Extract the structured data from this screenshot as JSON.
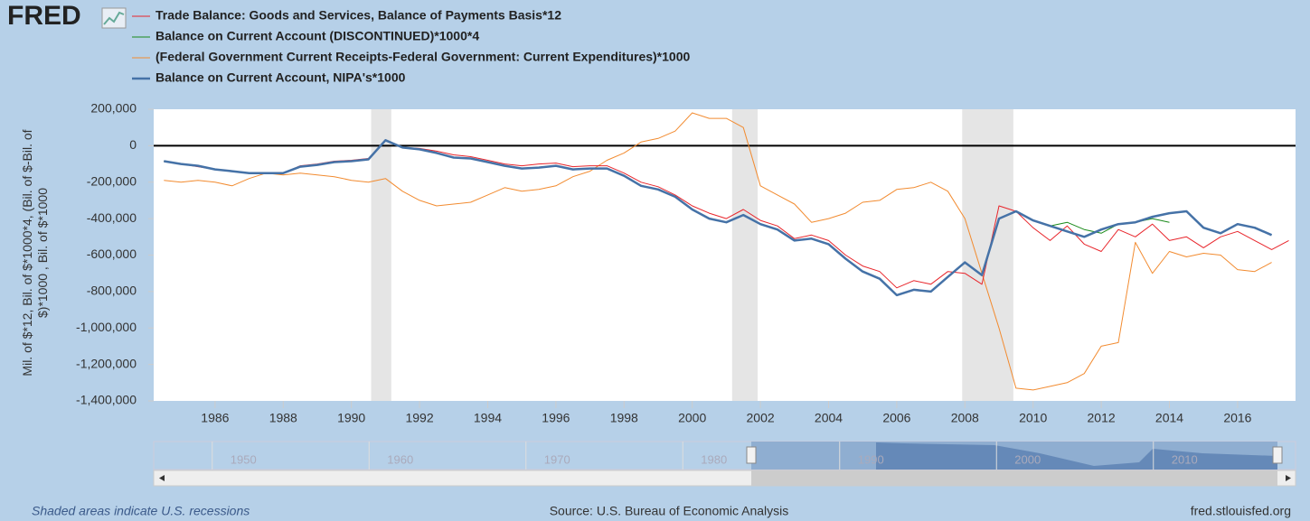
{
  "logo": "FRED",
  "chart_data": {
    "type": "line",
    "y_axis_label": "Mil. of $*12, Bil. of $*1000*4, (Bil. of $-Bil. of $)*1000 , Bil. of $*1000",
    "x": [
      1984.5,
      1985,
      1985.5,
      1986,
      1986.5,
      1987,
      1987.5,
      1988,
      1988.5,
      1989,
      1989.5,
      1990,
      1990.5,
      1991,
      1991.5,
      1992,
      1992.5,
      1993,
      1993.5,
      1994,
      1994.5,
      1995,
      1995.5,
      1996,
      1996.5,
      1997,
      1997.5,
      1998,
      1998.5,
      1999,
      1999.5,
      2000,
      2000.5,
      2001,
      2001.5,
      2002,
      2002.5,
      2003,
      2003.5,
      2004,
      2004.5,
      2005,
      2005.5,
      2006,
      2006.5,
      2007,
      2007.5,
      2008,
      2008.5,
      2009,
      2009.5,
      2010,
      2010.5,
      2011,
      2011.5,
      2012,
      2012.5,
      2013,
      2013.5,
      2014,
      2014.5,
      2015,
      2015.5,
      2016,
      2016.5,
      2017,
      2017.5
    ],
    "series": [
      {
        "name": "Trade Balance: Goods and Services, Balance of Payments Basis*12",
        "color": "#e8252b",
        "width": 1,
        "values": [
          -85000,
          -100000,
          -115000,
          -130000,
          -140000,
          -150000,
          -150000,
          -150000,
          -110000,
          -100000,
          -85000,
          -80000,
          -70000,
          30000,
          -10000,
          -15000,
          -30000,
          -50000,
          -60000,
          -80000,
          -100000,
          -110000,
          -100000,
          -95000,
          -115000,
          -110000,
          -110000,
          -150000,
          -200000,
          -225000,
          -270000,
          -330000,
          -370000,
          -400000,
          -350000,
          -410000,
          -440000,
          -510000,
          -490000,
          -520000,
          -600000,
          -660000,
          -690000,
          -780000,
          -740000,
          -760000,
          -690000,
          -700000,
          -760000,
          -330000,
          -360000,
          -450000,
          -520000,
          -440000,
          -540000,
          -580000,
          -460000,
          -500000,
          -430000,
          -520000,
          -500000,
          -560000,
          -500000,
          -470000,
          -520000,
          -570000,
          -520000
        ]
      },
      {
        "name": "Balance on Current Account (DISCONTINUED)*1000*4",
        "color": "#1a8a1a",
        "width": 1,
        "values": [
          -85000,
          -100000,
          -110000,
          -130000,
          -140000,
          -150000,
          -150000,
          -150000,
          -115000,
          -105000,
          -90000,
          -85000,
          -75000,
          30000,
          -10000,
          -20000,
          -40000,
          -65000,
          -70000,
          -90000,
          -110000,
          -125000,
          -120000,
          -110000,
          -130000,
          -125000,
          -125000,
          -165000,
          -220000,
          -240000,
          -280000,
          -350000,
          -400000,
          -420000,
          -380000,
          -430000,
          -460000,
          -520000,
          -510000,
          -540000,
          -620000,
          -690000,
          -730000,
          -820000,
          -790000,
          -800000,
          -720000,
          -640000,
          -710000,
          -400000,
          -360000,
          -410000,
          -440000,
          -420000,
          -460000,
          -480000,
          -430000,
          -420000,
          -400000,
          -420000,
          null,
          null,
          null,
          null,
          null,
          null,
          null
        ]
      },
      {
        "name": "(Federal Government Current Receipts-Federal Government: Current Expenditures)*1000",
        "color": "#f28b30",
        "width": 1,
        "values": [
          -190000,
          -200000,
          -190000,
          -200000,
          -220000,
          -180000,
          -150000,
          -160000,
          -150000,
          -160000,
          -170000,
          -190000,
          -200000,
          -180000,
          -250000,
          -300000,
          -330000,
          -320000,
          -310000,
          -270000,
          -230000,
          -250000,
          -240000,
          -220000,
          -170000,
          -140000,
          -80000,
          -40000,
          20000,
          40000,
          80000,
          180000,
          150000,
          150000,
          100000,
          -220000,
          -270000,
          -320000,
          -420000,
          -400000,
          -370000,
          -310000,
          -300000,
          -240000,
          -230000,
          -200000,
          -250000,
          -400000,
          -700000,
          -1000000,
          -1330000,
          -1340000,
          -1320000,
          -1300000,
          -1250000,
          -1100000,
          -1080000,
          -530000,
          -700000,
          -580000,
          -610000,
          -590000,
          -600000,
          -680000,
          -690000,
          -640000,
          null
        ]
      },
      {
        "name": "Balance on Current Account, NIPA's*1000",
        "color": "#4572a7",
        "width": 2.5,
        "values": [
          -85000,
          -100000,
          -110000,
          -130000,
          -140000,
          -150000,
          -150000,
          -150000,
          -115000,
          -105000,
          -90000,
          -85000,
          -75000,
          30000,
          -10000,
          -20000,
          -40000,
          -65000,
          -70000,
          -90000,
          -110000,
          -125000,
          -120000,
          -110000,
          -130000,
          -125000,
          -125000,
          -165000,
          -220000,
          -240000,
          -280000,
          -350000,
          -400000,
          -420000,
          -380000,
          -430000,
          -460000,
          -520000,
          -510000,
          -540000,
          -620000,
          -690000,
          -730000,
          -820000,
          -790000,
          -800000,
          -720000,
          -640000,
          -710000,
          -400000,
          -360000,
          -410000,
          -440000,
          -470000,
          -500000,
          -460000,
          -430000,
          -420000,
          -390000,
          -370000,
          -360000,
          -450000,
          -480000,
          -430000,
          -450000,
          -490000,
          null
        ]
      }
    ],
    "xlim": [
      1984.2,
      2017.7
    ],
    "xticks": [
      1986,
      1988,
      1990,
      1992,
      1994,
      1996,
      1998,
      2000,
      2002,
      2004,
      2006,
      2008,
      2010,
      2012,
      2014,
      2016
    ],
    "ylim": [
      -1400000,
      200000
    ],
    "yticks": [
      {
        "value": -1400000,
        "label": "-1,400,000"
      },
      {
        "value": -1200000,
        "label": "-1,200,000"
      },
      {
        "value": -1000000,
        "label": "-1,000,000"
      },
      {
        "value": -800000,
        "label": "-800,000"
      },
      {
        "value": -600000,
        "label": "-600,000"
      },
      {
        "value": -400000,
        "label": "-400,000"
      },
      {
        "value": -200000,
        "label": "-200,000"
      },
      0,
      {
        "value": 200000,
        "label": "200,000"
      }
    ],
    "recessions": [
      [
        1990.58,
        1991.17
      ],
      [
        2001.17,
        2001.92
      ],
      [
        2007.92,
        2009.42
      ]
    ],
    "zero_line": true,
    "note": "Shaded areas indicate U.S. recessions",
    "source": "Source: U.S. Bureau of Economic Analysis",
    "site": "fred.stlouisfed.org"
  },
  "navigator": {
    "labels": [
      "1950",
      "1960",
      "1970",
      "1980",
      "1990",
      "2000",
      "2010"
    ]
  }
}
